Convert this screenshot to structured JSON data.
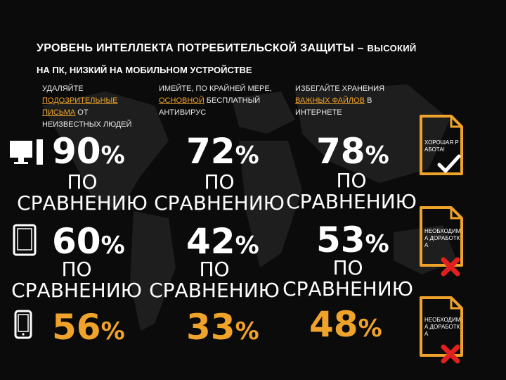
{
  "title": {
    "main": "УРОВЕНЬ ИНТЕЛЛЕКТА ПОТРЕБИТЕЛЬСКОЙ ЗАЩИТЫ",
    "dash": "–",
    "tail": "ВЫСОКИЙ",
    "sub": "НА ПК, НИЗКИЙ НА МОБИЛЬНОМ УСТРОЙСТВЕ"
  },
  "columns": [
    {
      "pre": "УДАЛЯЙТЕ ",
      "highlight": "ПОДОЗРИТЕЛЬНЫЕ ПИСЬМА",
      "post": " ОТ НЕИЗВЕСТНЫХ ЛЮДЕЙ"
    },
    {
      "pre": "ИМЕЙТЕ, ПО КРАЙНЕЙ МЕРЕ, ",
      "highlight": "ОСНОВНОЙ",
      "post": " БЕСПЛАТНЫЙ АНТИВИРУС"
    },
    {
      "pre": "ИЗБЕГАЙТЕ ХРАНЕНИЯ ",
      "highlight": "ВАЖНЫХ ФАЙЛОВ",
      "post": " В ИНТЕРНЕТЕ"
    }
  ],
  "rows": [
    {
      "device_icon": "desktop-computer-icon",
      "values": [
        "90",
        "72",
        "78"
      ],
      "sign": "%",
      "color": "#ffffff"
    },
    {
      "device_icon": "tablet-icon",
      "values": [
        "60",
        "42",
        "53"
      ],
      "sign": "%",
      "color": "#ffffff"
    },
    {
      "device_icon": "smartphone-icon",
      "values": [
        "56",
        "33",
        "48"
      ],
      "sign": "%",
      "color": "#f0a32a"
    }
  ],
  "comparison": {
    "po": "ПО",
    "word": "СРАВНЕНИЮ"
  },
  "notes": [
    {
      "text": "ХОРОШАЯ РАБОТА!",
      "mark_icon": "checkmark-icon"
    },
    {
      "text": "НЕОБХОДИМА ДОРАБОТКА",
      "mark_icon": "red-cross-icon"
    },
    {
      "text": "НЕОБХОДИМА ДОРАБОТКА",
      "mark_icon": "red-cross-icon"
    }
  ],
  "colors": {
    "accent": "#f0a32a",
    "background": "#0b0b0b",
    "error": "#e0201c",
    "text": "#ffffff"
  }
}
